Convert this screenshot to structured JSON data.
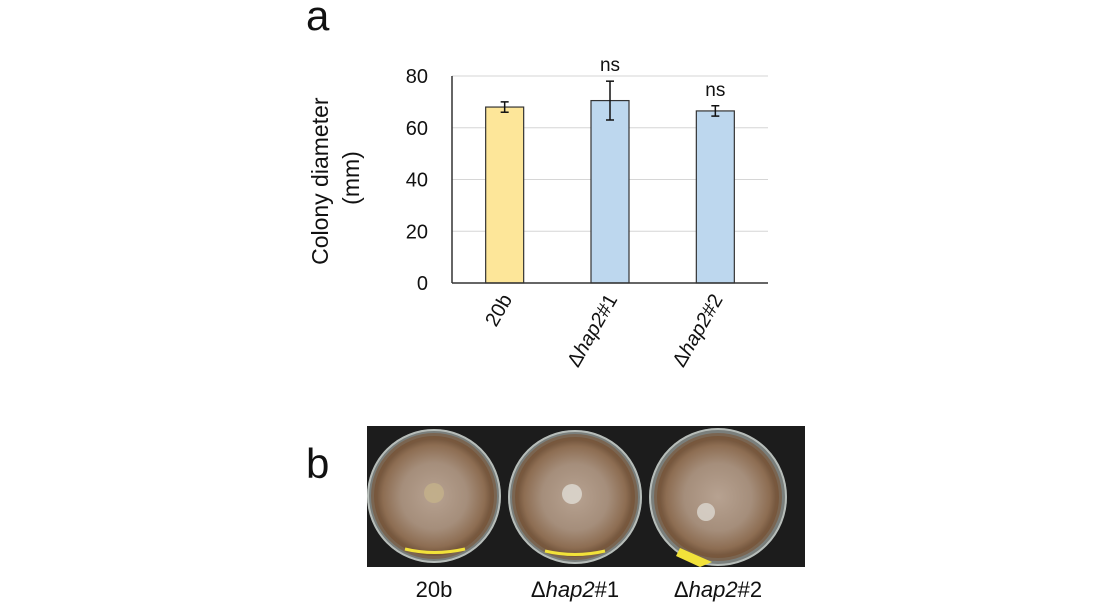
{
  "panels": {
    "a_label": "a",
    "b_label": "b"
  },
  "chart_data": {
    "type": "bar",
    "ylabel_line1": "Colony diameter",
    "ylabel_line2": "(mm)",
    "ylim": [
      0,
      80
    ],
    "yticks": [
      0,
      20,
      40,
      60,
      80
    ],
    "grid": true,
    "categories": [
      {
        "prefix": "",
        "italic": "",
        "suffix": "20b"
      },
      {
        "prefix": "Δ",
        "italic": "hap2",
        "suffix": "#1"
      },
      {
        "prefix": "Δ",
        "italic": "hap2",
        "suffix": "#2"
      }
    ],
    "values": [
      68,
      70.5,
      66.5
    ],
    "errors": [
      2,
      7.5,
      2
    ],
    "bar_colors": [
      "#fde699",
      "#bdd7ee",
      "#bdd7ee"
    ],
    "annotations": [
      "",
      "ns",
      "ns"
    ]
  },
  "photo": {
    "labels": [
      {
        "prefix": "",
        "italic": "",
        "suffix": "20b"
      },
      {
        "prefix": "Δ",
        "italic": "hap2",
        "suffix": "#1"
      },
      {
        "prefix": "Δ",
        "italic": "hap2",
        "suffix": "#2"
      }
    ],
    "colors": {
      "background": "#1c1c1c",
      "colony": "#a88d70",
      "rim": "#8a6a4c",
      "tape": "#f2e23a"
    }
  }
}
